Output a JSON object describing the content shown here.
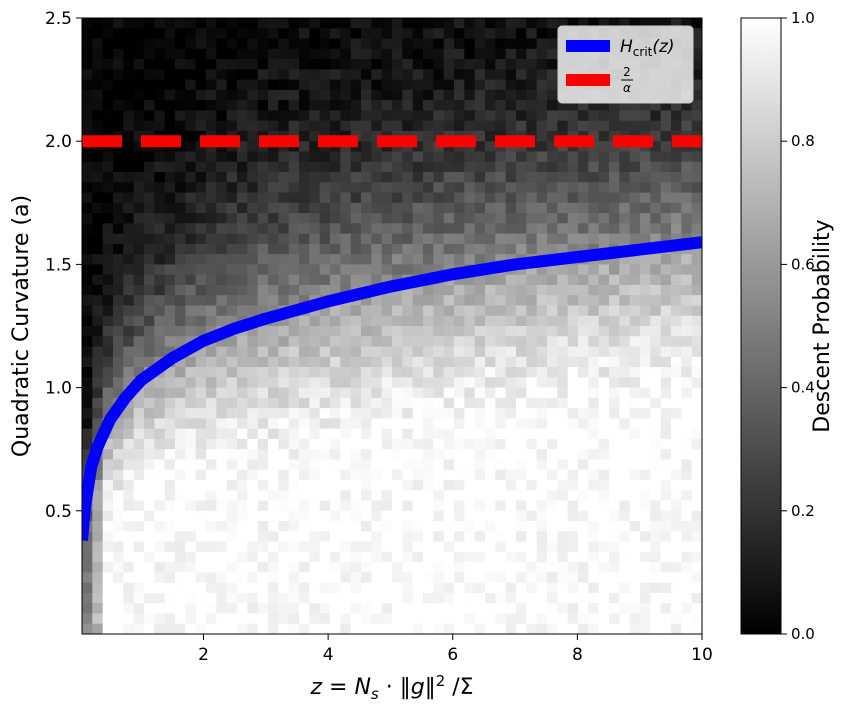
{
  "chart_data": {
    "type": "heatmap",
    "xlabel": "z = N_s · ‖g‖²/Σ",
    "ylabel": "Quadratic Curvature (a)",
    "xlim": [
      0.05,
      10
    ],
    "ylim": [
      0.0,
      2.5
    ],
    "x_ticks": [
      2,
      4,
      6,
      8,
      10
    ],
    "y_ticks": [
      0.5,
      1.0,
      1.5,
      2.0,
      2.5
    ],
    "x_tick_labels": [
      "2",
      "4",
      "6",
      "8",
      "10"
    ],
    "y_tick_labels": [
      "0.5",
      "1.0",
      "1.5",
      "2.0",
      "2.5"
    ],
    "grid": false,
    "colormap": "gray",
    "colorbar": {
      "label": "Descent Probability",
      "range": [
        0.0,
        1.0
      ],
      "ticks": [
        0.0,
        0.2,
        0.4,
        0.6,
        0.8,
        1.0
      ],
      "tick_labels": [
        "0.0",
        "0.2",
        "0.4",
        "0.6",
        "0.8",
        "1.0"
      ]
    },
    "heatmap": {
      "nx": 60,
      "ny": 60,
      "description_of_trend": "probability ≈ 1 below H_crit(z), ≈ 0 above"
    },
    "series": [
      {
        "name": "H_crit(z)",
        "style": "solid",
        "color": "#0000ff",
        "x": [
          0.05,
          0.1,
          0.2,
          0.3,
          0.5,
          0.75,
          1.0,
          1.5,
          2.0,
          2.5,
          3.0,
          4.0,
          5.0,
          6.0,
          7.0,
          8.0,
          9.0,
          10.0
        ],
        "y": [
          0.38,
          0.52,
          0.68,
          0.76,
          0.87,
          0.96,
          1.03,
          1.12,
          1.19,
          1.24,
          1.28,
          1.35,
          1.41,
          1.46,
          1.5,
          1.53,
          1.56,
          1.59
        ]
      },
      {
        "name": "2/α",
        "style": "dashed",
        "color": "#ff0000",
        "x": [
          0.05,
          10.0
        ],
        "y": [
          2.0,
          2.0
        ]
      }
    ],
    "legend": {
      "placement": "top-right",
      "entries": [
        {
          "label_main": "H",
          "label_sub": "crit",
          "label_tail": "(z)",
          "color": "#0000ff",
          "style": "solid"
        },
        {
          "label_num": "2",
          "label_den": "α",
          "color": "#ff0000",
          "style": "dashed"
        }
      ]
    }
  }
}
